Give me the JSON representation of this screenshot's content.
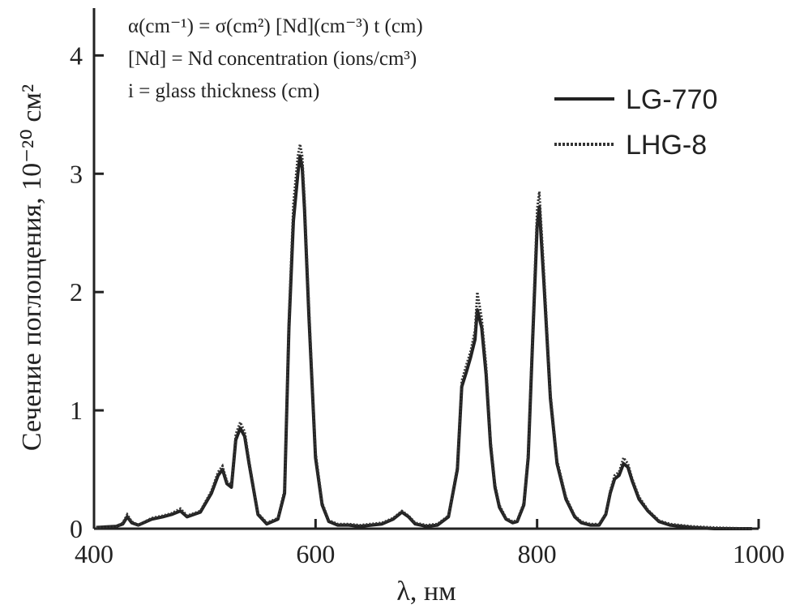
{
  "chart_data": {
    "type": "line",
    "xlabel": "λ, нм",
    "ylabel": "Сечение поглощения, 10⁻²⁰ см²",
    "xlim": [
      400,
      1000
    ],
    "ylim": [
      0,
      4.4
    ],
    "xticks": [
      "400",
      "600",
      "800",
      "1000"
    ],
    "yticks": [
      "0",
      "1",
      "2",
      "3",
      "4"
    ],
    "grid": false,
    "legend_position": "top-right",
    "annotations": [
      "α(cm⁻¹) = σ(cm²) [Nd](cm⁻³) t (cm)",
      "[Nd] = Nd concentration (ions/cm³)",
      "i = glass thickness (cm)"
    ],
    "series": [
      {
        "name": "LG-770",
        "style": "solid",
        "color": "#222222",
        "x": [
          402,
          420,
          426,
          430,
          434,
          440,
          452,
          462,
          470,
          478,
          484,
          496,
          506,
          512,
          516,
          520,
          524,
          528,
          532,
          536,
          540,
          548,
          556,
          566,
          572,
          576,
          580,
          584,
          586,
          588,
          590,
          594,
          600,
          606,
          612,
          620,
          630,
          640,
          660,
          670,
          678,
          684,
          690,
          700,
          710,
          720,
          728,
          732,
          736,
          740,
          744,
          746,
          750,
          754,
          758,
          762,
          766,
          772,
          778,
          782,
          788,
          792,
          796,
          800,
          802,
          806,
          812,
          818,
          826,
          834,
          840,
          848,
          856,
          862,
          866,
          870,
          874,
          878,
          882,
          886,
          892,
          900,
          910,
          920,
          940,
          960,
          994
        ],
        "y": [
          0.01,
          0.02,
          0.04,
          0.1,
          0.05,
          0.03,
          0.08,
          0.1,
          0.12,
          0.15,
          0.1,
          0.14,
          0.3,
          0.45,
          0.5,
          0.38,
          0.35,
          0.75,
          0.85,
          0.78,
          0.55,
          0.12,
          0.04,
          0.08,
          0.3,
          1.7,
          2.6,
          3.0,
          3.15,
          3.05,
          2.7,
          1.8,
          0.6,
          0.2,
          0.06,
          0.03,
          0.03,
          0.02,
          0.04,
          0.08,
          0.14,
          0.1,
          0.04,
          0.02,
          0.03,
          0.1,
          0.5,
          1.2,
          1.32,
          1.45,
          1.6,
          1.85,
          1.7,
          1.3,
          0.7,
          0.35,
          0.18,
          0.08,
          0.05,
          0.06,
          0.2,
          0.6,
          1.6,
          2.55,
          2.72,
          2.1,
          1.1,
          0.55,
          0.25,
          0.1,
          0.05,
          0.03,
          0.03,
          0.12,
          0.3,
          0.42,
          0.45,
          0.55,
          0.52,
          0.4,
          0.25,
          0.15,
          0.06,
          0.03,
          0.01,
          0.0,
          0.0
        ]
      },
      {
        "name": "LHG-8",
        "style": "dotted",
        "color": "#333333",
        "x": [
          402,
          420,
          426,
          430,
          434,
          440,
          452,
          462,
          470,
          478,
          484,
          496,
          506,
          512,
          516,
          520,
          524,
          528,
          532,
          536,
          540,
          548,
          556,
          566,
          572,
          576,
          580,
          584,
          586,
          588,
          590,
          594,
          600,
          606,
          612,
          620,
          630,
          640,
          660,
          670,
          678,
          684,
          690,
          700,
          710,
          720,
          728,
          732,
          736,
          740,
          744,
          746,
          750,
          754,
          758,
          762,
          766,
          772,
          778,
          782,
          788,
          792,
          796,
          800,
          802,
          806,
          812,
          818,
          826,
          834,
          840,
          848,
          856,
          862,
          866,
          870,
          874,
          878,
          882,
          886,
          892,
          900,
          910,
          920,
          940,
          960,
          994
        ],
        "y": [
          0.01,
          0.02,
          0.05,
          0.12,
          0.06,
          0.03,
          0.09,
          0.11,
          0.13,
          0.17,
          0.11,
          0.15,
          0.32,
          0.48,
          0.53,
          0.4,
          0.37,
          0.8,
          0.9,
          0.82,
          0.58,
          0.13,
          0.05,
          0.09,
          0.33,
          1.8,
          2.75,
          3.15,
          3.25,
          3.15,
          2.8,
          1.9,
          0.65,
          0.22,
          0.07,
          0.04,
          0.04,
          0.03,
          0.05,
          0.09,
          0.15,
          0.11,
          0.05,
          0.03,
          0.04,
          0.11,
          0.53,
          1.25,
          1.38,
          1.5,
          1.68,
          2.0,
          1.78,
          1.38,
          0.75,
          0.38,
          0.2,
          0.09,
          0.06,
          0.07,
          0.22,
          0.65,
          1.7,
          2.7,
          2.85,
          2.2,
          1.15,
          0.58,
          0.27,
          0.11,
          0.06,
          0.04,
          0.04,
          0.13,
          0.32,
          0.45,
          0.48,
          0.6,
          0.55,
          0.42,
          0.27,
          0.16,
          0.07,
          0.04,
          0.02,
          0.01,
          0.0
        ]
      }
    ]
  }
}
